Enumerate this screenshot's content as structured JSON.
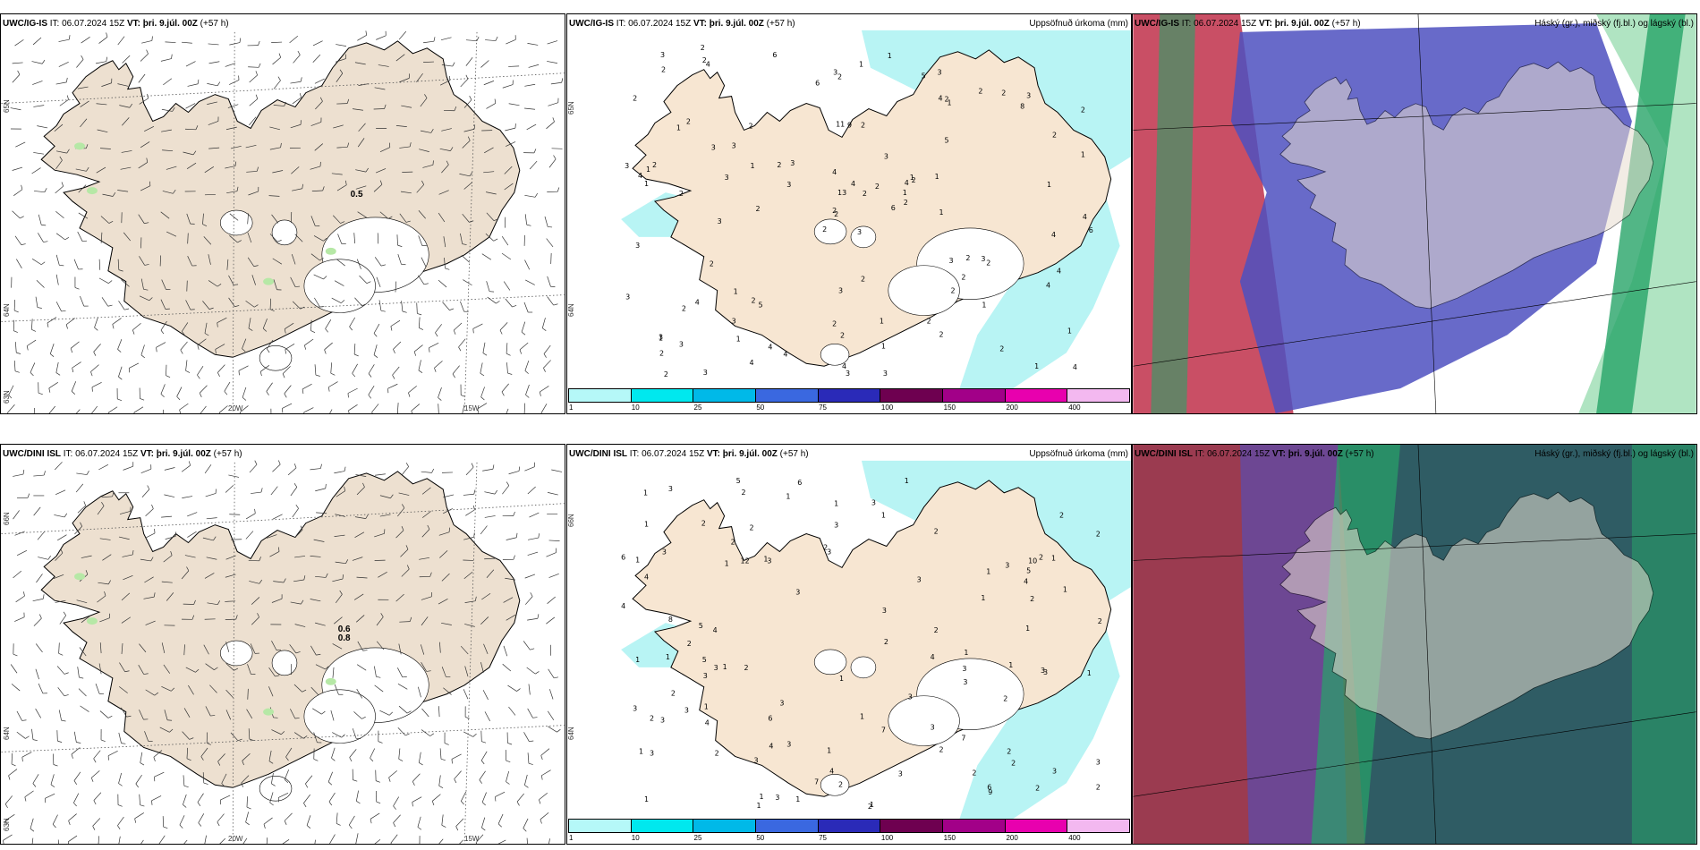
{
  "panels": [
    {
      "model": "UWC/IG-IS",
      "it_label": "IT:",
      "it_value": "06.07.2024 15Z",
      "vt_label": "VT:",
      "vt_value": "þri. 9.júl. 00Z",
      "lead": "(+57 h)",
      "right_title": "",
      "kind": "wind",
      "lat_labels": [
        "65N",
        "64N",
        "63N"
      ],
      "lon_labels": [
        "20W",
        "15W"
      ],
      "annotations": [
        "0.5"
      ]
    },
    {
      "model": "UWC/IG-IS",
      "it_label": "IT:",
      "it_value": "06.07.2024 15Z",
      "vt_label": "VT:",
      "vt_value": "þri. 9.júl. 00Z",
      "lead": "(+57 h)",
      "right_title": "Uppsöfnuð úrkoma (mm)",
      "kind": "precip",
      "lat_labels": [
        "65N",
        "64N"
      ],
      "annotations": [
        "3",
        "1",
        "2",
        "3",
        "4",
        "5",
        "3",
        "2",
        "2",
        "6",
        "4",
        "4",
        "2",
        "2",
        "2",
        "5",
        "3",
        "11",
        "3",
        "4",
        "3",
        "2",
        "1",
        "9",
        "2",
        "2",
        "2",
        "2",
        "1",
        "3",
        "1",
        "2",
        "2",
        "13",
        "2",
        "2",
        "2",
        "1",
        "1",
        "3",
        "1",
        "2",
        "3",
        "2",
        "4",
        "3",
        "1",
        "2",
        "2",
        "2",
        "2",
        "2",
        "2",
        "2",
        "2",
        "3",
        "2",
        "3",
        "1",
        "3",
        "1",
        "2",
        "2",
        "3",
        "2",
        "2",
        "5",
        "6",
        "4",
        "3",
        "3",
        "4",
        "2",
        "1",
        "1",
        "2",
        "3",
        "3",
        "4",
        "1",
        "2",
        "3",
        "1",
        "4",
        "4",
        "1",
        "2",
        "2",
        "3",
        "2",
        "3",
        "6",
        "1",
        "1",
        "2",
        "4",
        "1",
        "3",
        "4",
        "1",
        "3",
        "6",
        "4",
        "4",
        "2",
        "1",
        "4",
        "1",
        "8",
        "3",
        "4"
      ]
    },
    {
      "model": "UWC/IG-IS",
      "it_label": "IT:",
      "it_value": "06.07.2024 15Z",
      "vt_label": "VT:",
      "vt_value": "þri. 9.júl. 00Z",
      "lead": "(+57 h)",
      "right_title": "Háský (gr.), miðský (fj.bl.) og lágský (bl.)",
      "kind": "cloud"
    },
    {
      "model": "UWC/DINI ISL",
      "it_label": "IT:",
      "it_value": "06.07.2024 15Z",
      "vt_label": "VT:",
      "vt_value": "þri. 9.júl. 00Z",
      "lead": "(+57 h)",
      "right_title": "",
      "kind": "wind",
      "lat_labels": [
        "66N",
        "64N",
        "63N"
      ],
      "lon_labels": [
        "20W",
        "15W"
      ],
      "annotations": [
        "0.6",
        "0.8"
      ]
    },
    {
      "model": "UWC/DINI ISL",
      "it_label": "IT:",
      "it_value": "06.07.2024 15Z",
      "vt_label": "VT:",
      "vt_value": "þri. 9.júl. 00Z",
      "lead": "(+57 h)",
      "right_title": "Uppsöfnuð úrkoma (mm)",
      "kind": "precip",
      "lat_labels": [
        "66N",
        "64N"
      ],
      "annotations": [
        "1",
        "2",
        "3",
        "3",
        "2",
        "1",
        "3",
        "3",
        "2",
        "2",
        "6",
        "5",
        "3",
        "3",
        "6",
        "5",
        "10",
        "7",
        "12",
        "2",
        "3",
        "2",
        "4",
        "1",
        "3",
        "1",
        "1",
        "9",
        "1",
        "2",
        "2",
        "2",
        "3",
        "3",
        "1",
        "1",
        "3",
        "1",
        "2",
        "7",
        "3",
        "2",
        "2",
        "2",
        "3",
        "1",
        "3",
        "2",
        "2",
        "3",
        "2",
        "4",
        "2",
        "1",
        "1",
        "1",
        "4",
        "3",
        "5",
        "2",
        "1",
        "3",
        "4",
        "2",
        "1",
        "3",
        "2",
        "2",
        "1",
        "1",
        "2",
        "2",
        "3",
        "1",
        "3",
        "3",
        "1",
        "1",
        "1",
        "5",
        "7",
        "8",
        "3",
        "6",
        "4",
        "3",
        "4",
        "4",
        "3",
        "1",
        "1",
        "1",
        "2",
        "1",
        "1",
        "3",
        "1",
        "3",
        "2",
        "3",
        "2",
        "3",
        "1",
        "2",
        "3",
        "1",
        "1",
        "6",
        "4"
      ]
    },
    {
      "model": "UWC/DINI ISL",
      "it_label": "IT:",
      "it_value": "06.07.2024 15Z",
      "vt_label": "VT:",
      "vt_value": "þri. 9.júl. 00Z",
      "lead": "(+57 h)",
      "right_title": "Háský (gr.), miðský (fj.bl.) og lágský (bl.)",
      "kind": "cloud"
    }
  ],
  "precip_legend": {
    "colors": [
      "#b5f8f8",
      "#00e8ee",
      "#00b9e8",
      "#3a68e0",
      "#2a2ab8",
      "#6e0050",
      "#a20088",
      "#e800ae",
      "#f3b8f0"
    ],
    "ticks": [
      "1",
      "10",
      "25",
      "50",
      "75",
      "100",
      "150",
      "200",
      "400"
    ]
  },
  "colors": {
    "land": "#f7e6d2",
    "land_wind": "#ede0d0",
    "precip_light": "#b8f4f4",
    "cloud_high": "#27a468",
    "cloud_mid": "#4e50c0",
    "cloud_low": "#c0304a",
    "cloud_mid_dark": "#2f5c64"
  }
}
